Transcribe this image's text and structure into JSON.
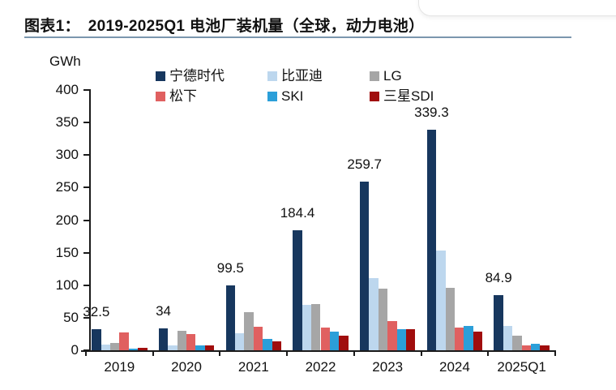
{
  "header": {
    "figure_label": "图表1：",
    "figure_title": "2019-2025Q1 电池厂装机量（全球，动力电池）",
    "underline_color": "#7b97ae"
  },
  "chart_data": {
    "type": "bar",
    "title": "2019-2025Q1 电池厂装机量（全球，动力电池）",
    "ylabel_unit": "GWh",
    "categories": [
      "2019",
      "2020",
      "2021",
      "2022",
      "2023",
      "2024",
      "2025Q1"
    ],
    "series": [
      {
        "name": "宁德时代",
        "color": "#17375e",
        "values": [
          32.5,
          34,
          99.5,
          184.4,
          259.7,
          339.3,
          84.9
        ]
      },
      {
        "name": "比亚迪",
        "color": "#bdd7ee",
        "values": [
          9,
          8,
          26,
          70,
          111,
          153,
          37
        ]
      },
      {
        "name": "LG",
        "color": "#a6a6a6",
        "values": [
          11.5,
          30,
          58,
          71,
          95,
          96,
          23
        ]
      },
      {
        "name": "松下",
        "color": "#e06060",
        "values": [
          28,
          25,
          36,
          35,
          45,
          35,
          7
        ]
      },
      {
        "name": "SKI",
        "color": "#2b9fd9",
        "values": [
          2,
          7,
          17,
          29,
          33,
          38,
          10
        ]
      },
      {
        "name": "三星SDI",
        "color": "#a00d0d",
        "values": [
          4,
          8,
          14,
          23,
          32,
          29,
          7
        ]
      }
    ],
    "data_labels": {
      "series": "宁德时代",
      "values": [
        "32.5",
        "34",
        "99.5",
        "184.4",
        "259.7",
        "339.3",
        "84.9"
      ]
    },
    "ylim": [
      0,
      400
    ],
    "ytick_step": 50,
    "yticks": [
      "0",
      "50",
      "100",
      "150",
      "200",
      "250",
      "300",
      "350",
      "400"
    ],
    "legend_position": "top",
    "legend_rows": [
      [
        "宁德时代",
        "比亚迪",
        "LG"
      ],
      [
        "松下",
        "SKI",
        "三星SDI"
      ]
    ],
    "grid": false,
    "axis_color": "#1a1a1a"
  }
}
